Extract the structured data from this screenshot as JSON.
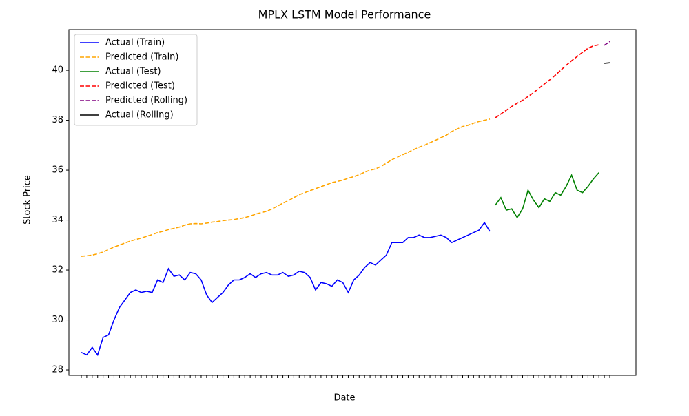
{
  "chart_data": {
    "type": "line",
    "title": "MPLX LSTM Model Performance",
    "x_label": "Date",
    "y_label": "Stock Price",
    "categories": [
      null,
      null,
      null,
      null,
      null,
      null,
      null,
      null,
      null,
      null,
      null,
      null,
      null,
      null,
      null,
      null,
      null,
      null,
      null,
      null,
      null,
      null,
      null,
      null,
      null,
      null,
      null,
      null,
      null,
      null,
      null,
      null,
      null,
      null,
      null,
      null,
      null,
      null,
      null,
      null,
      null,
      null,
      null,
      null,
      null,
      null,
      null,
      null,
      null,
      null,
      null,
      null,
      null,
      null,
      null,
      null,
      null,
      null,
      null,
      null,
      null,
      null,
      null,
      null,
      null,
      null,
      null,
      null,
      null,
      null,
      null,
      null,
      null,
      null,
      null,
      null,
      null,
      null,
      null,
      null,
      null,
      null,
      null,
      null,
      null,
      null,
      null,
      null,
      null,
      null,
      null,
      null,
      null,
      null,
      null,
      null,
      null,
      null
    ],
    "series": [
      {
        "name": "Actual (Train)",
        "color": "#0000ff",
        "dash": false,
        "values": [
          28.7,
          28.6,
          28.9,
          28.6,
          29.3,
          29.4,
          30.0,
          30.5,
          30.8,
          31.1,
          31.2,
          31.1,
          31.15,
          31.1,
          31.6,
          31.5,
          32.05,
          31.75,
          31.8,
          31.6,
          31.9,
          31.85,
          31.6,
          31.0,
          30.7,
          30.9,
          31.1,
          31.4,
          31.6,
          31.6,
          31.7,
          31.85,
          31.7,
          31.85,
          31.9,
          31.8,
          31.8,
          31.9,
          31.75,
          31.8,
          31.95,
          31.9,
          31.7,
          31.2,
          31.5,
          31.45,
          31.35,
          31.6,
          31.5,
          31.1,
          31.6,
          31.8,
          32.1,
          32.3,
          32.2,
          32.4,
          32.6,
          33.1,
          33.1,
          33.1,
          33.3,
          33.3,
          33.4,
          33.3,
          33.3,
          33.35,
          33.4,
          33.3,
          33.1,
          33.2,
          33.3,
          33.4,
          33.5,
          33.6,
          33.9,
          33.55,
          null,
          null,
          null,
          null,
          null,
          null,
          null,
          null,
          null,
          null,
          null,
          null,
          null,
          null,
          null,
          null,
          null,
          null,
          null,
          null,
          null,
          null
        ]
      },
      {
        "name": "Predicted (Train)",
        "color": "#ffa500",
        "dash": true,
        "values": [
          32.55,
          32.57,
          32.6,
          32.65,
          32.72,
          32.82,
          32.92,
          33.0,
          33.08,
          33.16,
          33.22,
          33.28,
          33.35,
          33.42,
          33.5,
          33.55,
          33.62,
          33.67,
          33.72,
          33.8,
          33.85,
          33.86,
          33.85,
          33.88,
          33.92,
          33.94,
          33.98,
          34.0,
          34.02,
          34.06,
          34.1,
          34.16,
          34.24,
          34.3,
          34.35,
          34.45,
          34.56,
          34.68,
          34.78,
          34.9,
          35.02,
          35.1,
          35.18,
          35.26,
          35.34,
          35.42,
          35.5,
          35.55,
          35.6,
          35.68,
          35.74,
          35.82,
          35.92,
          36.0,
          36.05,
          36.15,
          36.28,
          36.42,
          36.52,
          36.62,
          36.72,
          36.82,
          36.92,
          37.0,
          37.1,
          37.2,
          37.3,
          37.4,
          37.55,
          37.65,
          37.75,
          37.8,
          37.88,
          37.95,
          38.0,
          38.05,
          null,
          null,
          null,
          null,
          null,
          null,
          null,
          null,
          null,
          null,
          null,
          null,
          null,
          null,
          null,
          null,
          null,
          null,
          null,
          null,
          null,
          null
        ]
      },
      {
        "name": "Actual (Test)",
        "color": "#008000",
        "dash": false,
        "values": [
          null,
          null,
          null,
          null,
          null,
          null,
          null,
          null,
          null,
          null,
          null,
          null,
          null,
          null,
          null,
          null,
          null,
          null,
          null,
          null,
          null,
          null,
          null,
          null,
          null,
          null,
          null,
          null,
          null,
          null,
          null,
          null,
          null,
          null,
          null,
          null,
          null,
          null,
          null,
          null,
          null,
          null,
          null,
          null,
          null,
          null,
          null,
          null,
          null,
          null,
          null,
          null,
          null,
          null,
          null,
          null,
          null,
          null,
          null,
          null,
          null,
          null,
          null,
          null,
          null,
          null,
          null,
          null,
          null,
          null,
          null,
          null,
          null,
          null,
          null,
          null,
          34.6,
          34.9,
          34.4,
          34.45,
          34.1,
          34.45,
          35.2,
          34.8,
          34.5,
          34.85,
          34.75,
          35.1,
          35.0,
          35.35,
          35.8,
          35.2,
          35.1,
          35.35,
          35.65,
          35.9,
          null,
          null
        ]
      },
      {
        "name": "Predicted (Test)",
        "color": "#ff0000",
        "dash": true,
        "values": [
          null,
          null,
          null,
          null,
          null,
          null,
          null,
          null,
          null,
          null,
          null,
          null,
          null,
          null,
          null,
          null,
          null,
          null,
          null,
          null,
          null,
          null,
          null,
          null,
          null,
          null,
          null,
          null,
          null,
          null,
          null,
          null,
          null,
          null,
          null,
          null,
          null,
          null,
          null,
          null,
          null,
          null,
          null,
          null,
          null,
          null,
          null,
          null,
          null,
          null,
          null,
          null,
          null,
          null,
          null,
          null,
          null,
          null,
          null,
          null,
          null,
          null,
          null,
          null,
          null,
          null,
          null,
          null,
          null,
          null,
          null,
          null,
          null,
          null,
          null,
          null,
          38.1,
          38.25,
          38.4,
          38.55,
          38.68,
          38.8,
          38.95,
          39.1,
          39.28,
          39.45,
          39.62,
          39.8,
          40.0,
          40.2,
          40.38,
          40.55,
          40.72,
          40.88,
          40.98,
          41.02,
          null,
          null
        ]
      },
      {
        "name": "Predicted (Rolling)",
        "color": "#800080",
        "dash": true,
        "values": [
          null,
          null,
          null,
          null,
          null,
          null,
          null,
          null,
          null,
          null,
          null,
          null,
          null,
          null,
          null,
          null,
          null,
          null,
          null,
          null,
          null,
          null,
          null,
          null,
          null,
          null,
          null,
          null,
          null,
          null,
          null,
          null,
          null,
          null,
          null,
          null,
          null,
          null,
          null,
          null,
          null,
          null,
          null,
          null,
          null,
          null,
          null,
          null,
          null,
          null,
          null,
          null,
          null,
          null,
          null,
          null,
          null,
          null,
          null,
          null,
          null,
          null,
          null,
          null,
          null,
          null,
          null,
          null,
          null,
          null,
          null,
          null,
          null,
          null,
          null,
          null,
          null,
          null,
          null,
          null,
          null,
          null,
          null,
          null,
          null,
          null,
          null,
          null,
          null,
          null,
          null,
          null,
          null,
          null,
          null,
          null,
          41.0,
          41.15
        ]
      },
      {
        "name": "Actual (Rolling)",
        "color": "#000000",
        "dash": false,
        "values": [
          null,
          null,
          null,
          null,
          null,
          null,
          null,
          null,
          null,
          null,
          null,
          null,
          null,
          null,
          null,
          null,
          null,
          null,
          null,
          null,
          null,
          null,
          null,
          null,
          null,
          null,
          null,
          null,
          null,
          null,
          null,
          null,
          null,
          null,
          null,
          null,
          null,
          null,
          null,
          null,
          null,
          null,
          null,
          null,
          null,
          null,
          null,
          null,
          null,
          null,
          null,
          null,
          null,
          null,
          null,
          null,
          null,
          null,
          null,
          null,
          null,
          null,
          null,
          null,
          null,
          null,
          null,
          null,
          null,
          null,
          null,
          null,
          null,
          null,
          null,
          null,
          null,
          null,
          null,
          null,
          null,
          null,
          null,
          null,
          null,
          null,
          null,
          null,
          null,
          null,
          null,
          null,
          null,
          null,
          null,
          null,
          40.28,
          40.3
        ]
      }
    ],
    "ylim": [
      27.78,
      41.63
    ],
    "yticks": [
      28,
      30,
      32,
      34,
      36,
      38,
      40
    ],
    "legend": "upper left"
  }
}
